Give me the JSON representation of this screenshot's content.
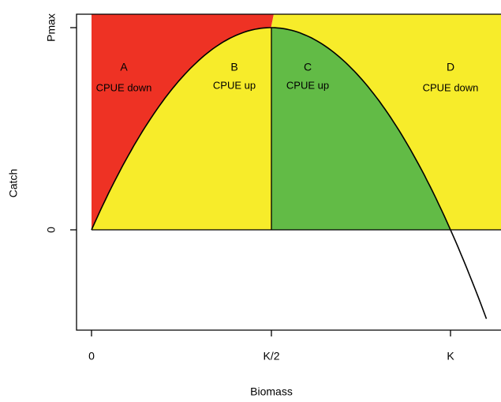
{
  "axes": {
    "x_label": "Biomass",
    "y_label": "Catch",
    "x_ticks": [
      "0",
      "K/2",
      "K"
    ],
    "y_ticks": [
      "0",
      "Pmax"
    ]
  },
  "regions": [
    {
      "letter": "A",
      "note": "CPUE down"
    },
    {
      "letter": "B",
      "note": "CPUE up"
    },
    {
      "letter": "C",
      "note": "CPUE up"
    },
    {
      "letter": "D",
      "note": "CPUE down"
    }
  ]
}
